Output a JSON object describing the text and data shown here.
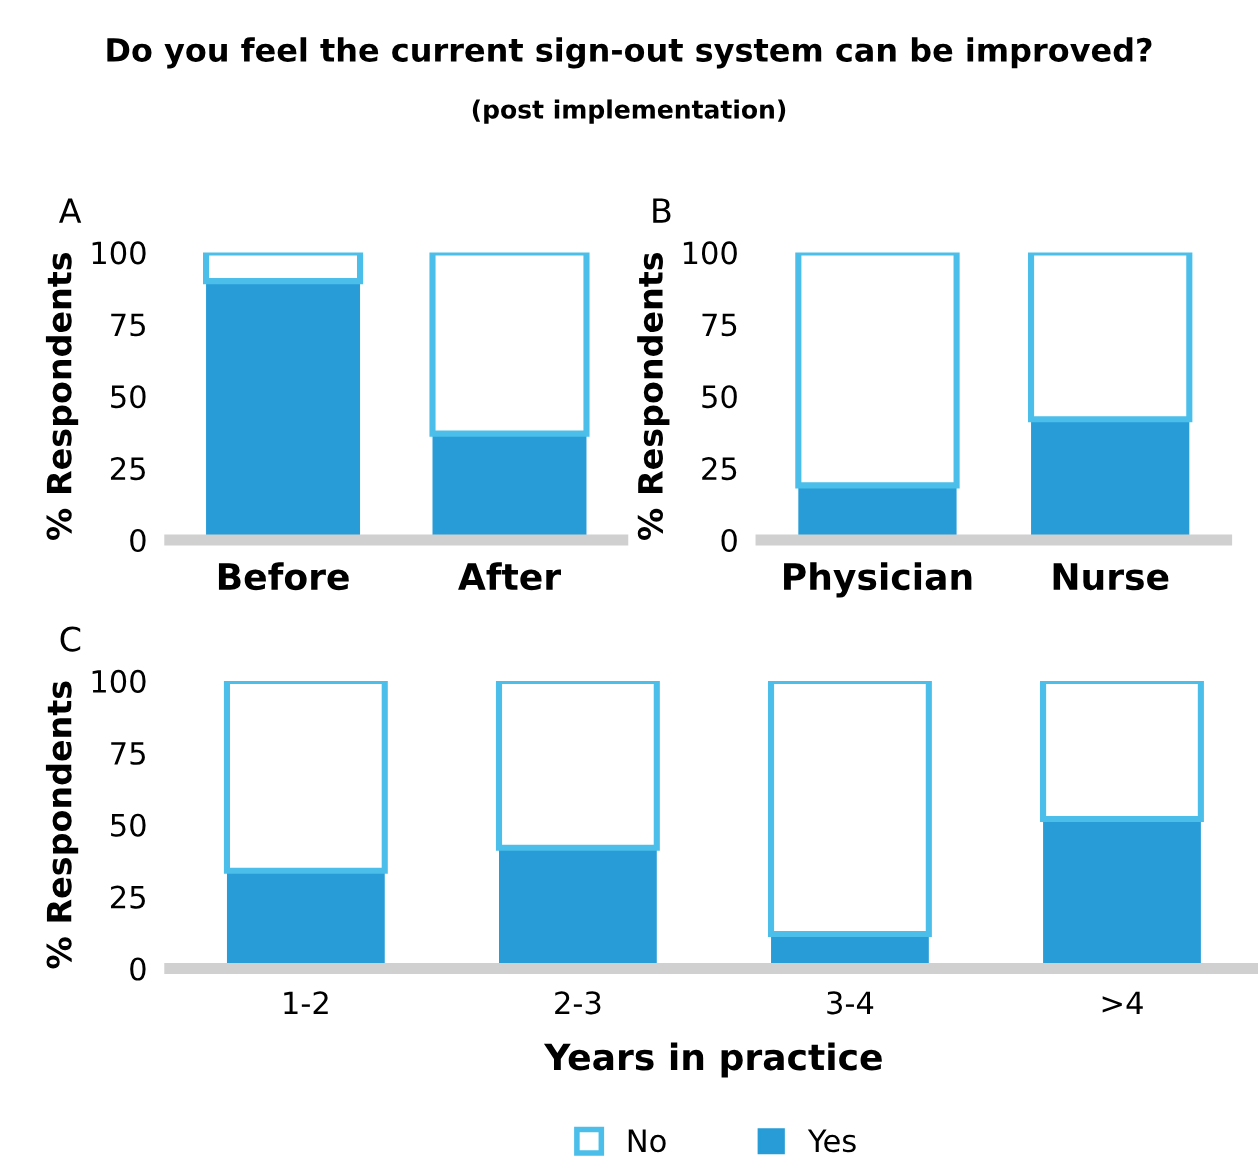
{
  "chart_data": [
    {
      "type": "bar",
      "title": "Do you feel the current sign-out system can be improved?",
      "subtitle": "(post implementation)",
      "annotations": [
        "A"
      ],
      "ylabel": "% Respondents",
      "categories": [
        "Before",
        "After"
      ],
      "stacked": true,
      "ylim": [
        0,
        100
      ],
      "yticks": [
        0,
        25,
        50,
        75,
        100
      ],
      "grid": false,
      "legend": false,
      "series": [
        {
          "color": "#279cd7",
          "values": [
            90,
            37
          ]
        },
        {
          "color": "#4bbfea",
          "values": [
            10,
            63
          ]
        }
      ]
    },
    {
      "type": "bar",
      "annotations": [
        "B"
      ],
      "ylabel": "% Respondents",
      "categories": [
        "Physician",
        "Nurse"
      ],
      "stacked": true,
      "ylim": [
        0,
        100
      ],
      "yticks": [
        0,
        25,
        50,
        75,
        100
      ],
      "grid": false,
      "legend": false,
      "series": [
        {
          "color": "#279cd7",
          "values": [
            19,
            42
          ]
        },
        {
          "color": "#4bbfea",
          "values": [
            81,
            58
          ]
        }
      ]
    },
    {
      "type": "bar",
      "annotations": [
        "C"
      ],
      "ylabel": "% Respondents",
      "xlabel": "Years in practice",
      "categories": [
        "1-2",
        "2-3",
        "3-4",
        ">4"
      ],
      "stacked": true,
      "ylim": [
        0,
        100
      ],
      "yticks": [
        0,
        25,
        50,
        75,
        100
      ],
      "grid": false,
      "legend": "bottom",
      "series": [
        {
          "name": "Yes",
          "color": "#279cd7",
          "values": [
            34,
            42,
            12,
            52
          ]
        },
        {
          "name": "No",
          "color": "#4bbfea",
          "values": [
            66,
            58,
            88,
            48
          ]
        }
      ]
    }
  ]
}
